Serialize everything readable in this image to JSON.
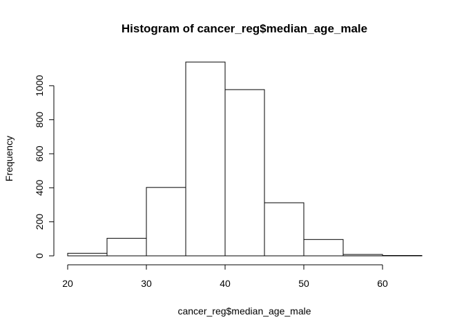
{
  "chart_data": {
    "type": "bar",
    "title": "Histogram of cancer_reg$median_age_male",
    "xlabel": "cancer_reg$median_age_male",
    "ylabel": "Frequency",
    "bins": [
      {
        "from": 20,
        "to": 25,
        "count": 15
      },
      {
        "from": 25,
        "to": 30,
        "count": 103
      },
      {
        "from": 30,
        "to": 35,
        "count": 402
      },
      {
        "from": 35,
        "to": 40,
        "count": 1139
      },
      {
        "from": 40,
        "to": 45,
        "count": 977
      },
      {
        "from": 45,
        "to": 50,
        "count": 312
      },
      {
        "from": 50,
        "to": 55,
        "count": 96
      },
      {
        "from": 55,
        "to": 60,
        "count": 8
      },
      {
        "from": 60,
        "to": 65,
        "count": 2
      }
    ],
    "xlim": [
      20,
      65
    ],
    "ylim": [
      0,
      1139
    ],
    "xticks": [
      "20",
      "30",
      "40",
      "50",
      "60"
    ],
    "yticks": [
      "0",
      "200",
      "400",
      "600",
      "800",
      "1000"
    ],
    "grid": false,
    "legend": "none"
  }
}
